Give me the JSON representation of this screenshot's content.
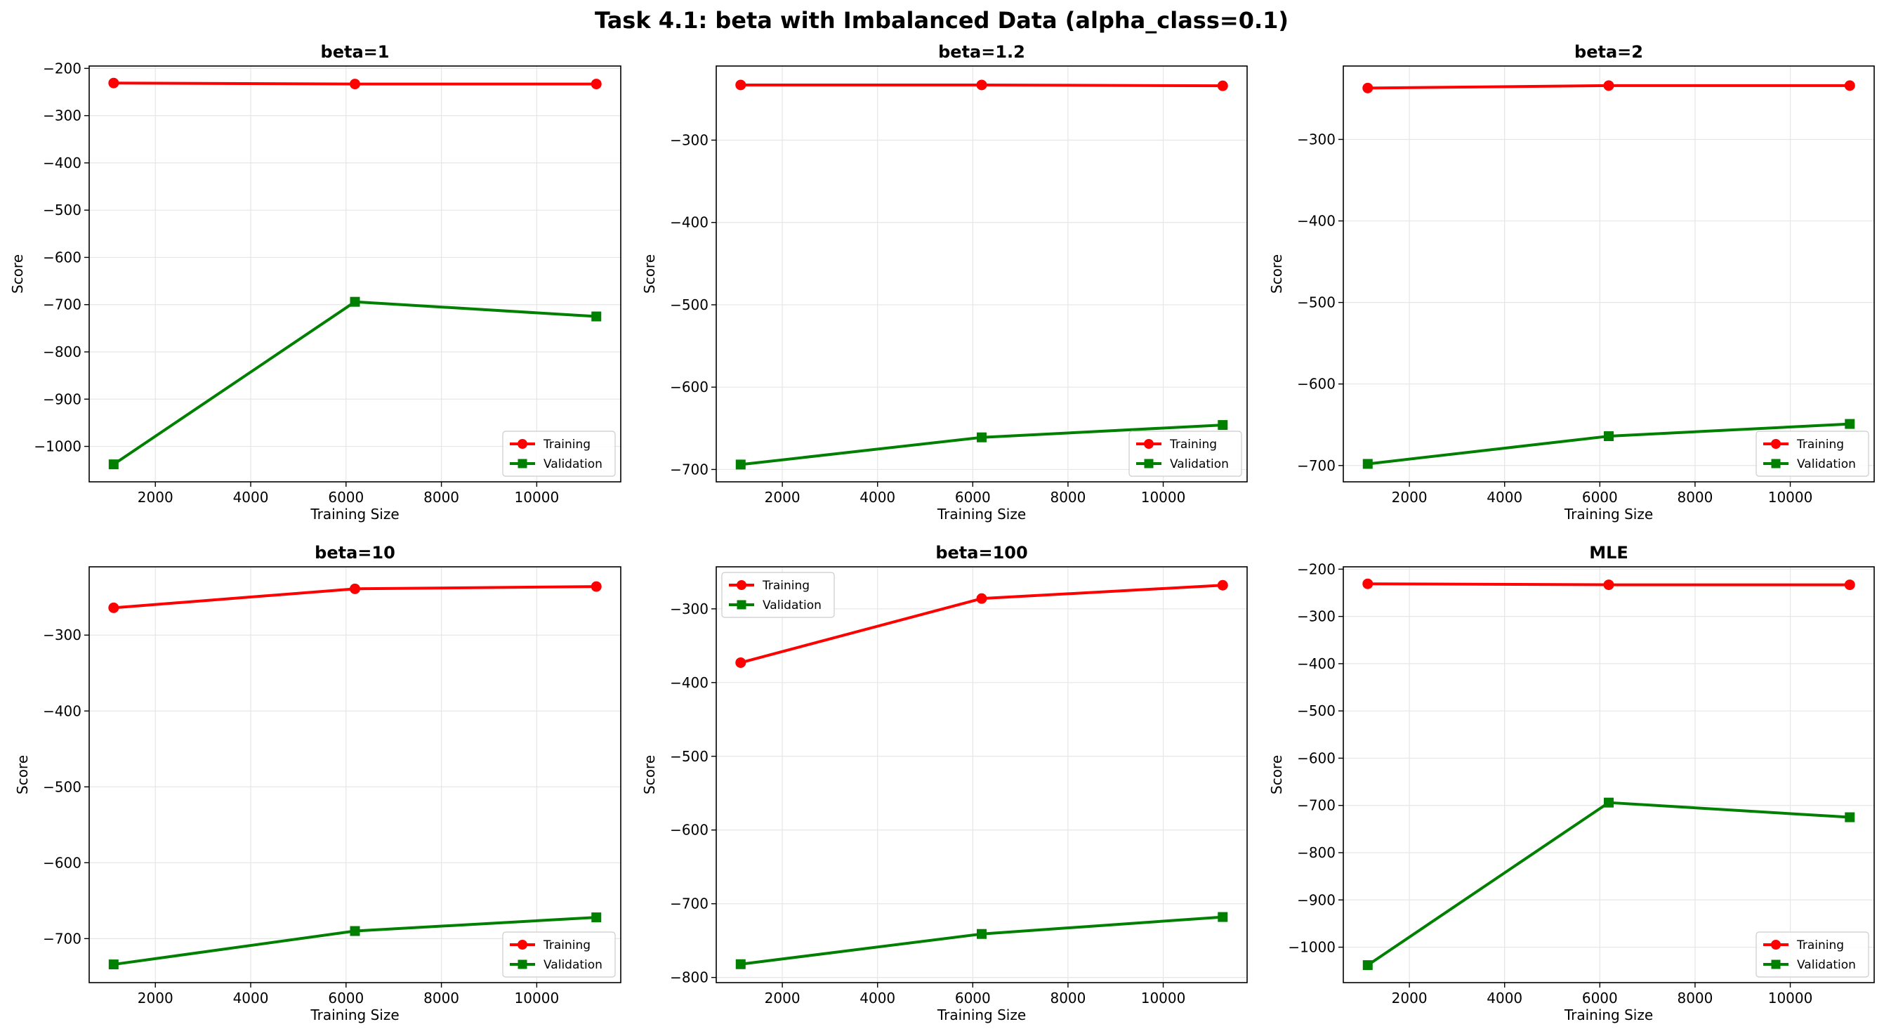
{
  "figure": {
    "suptitle": "Task 4.1: beta with Imbalanced Data (alpha_class=0.1)"
  },
  "chart_data": [
    {
      "type": "line",
      "title": "beta=1",
      "xlabel": "Training Size",
      "ylabel": "Score",
      "x": [
        1125,
        6187,
        11250
      ],
      "xlim": [
        612,
        11762
      ],
      "ylim": [
        -1075,
        -195
      ],
      "xticks": [
        2000,
        4000,
        6000,
        8000,
        10000
      ],
      "yticks": [
        -200,
        -300,
        -400,
        -500,
        -600,
        -700,
        -800,
        -900,
        -1000
      ],
      "grid": true,
      "legend": "lower right",
      "series": [
        {
          "name": "Training",
          "color": "#ff0000",
          "marker": "circle",
          "values": [
            -231,
            -233,
            -233
          ]
        },
        {
          "name": "Validation",
          "color": "#008000",
          "marker": "square",
          "values": [
            -1038,
            -694,
            -725
          ]
        }
      ]
    },
    {
      "type": "line",
      "title": "beta=1.2",
      "xlabel": "Training Size",
      "ylabel": "Score",
      "x": [
        1125,
        6187,
        11250
      ],
      "xlim": [
        612,
        11762
      ],
      "ylim": [
        -715,
        -210
      ],
      "xticks": [
        2000,
        4000,
        6000,
        8000,
        10000
      ],
      "yticks": [
        -300,
        -400,
        -500,
        -600,
        -700
      ],
      "grid": true,
      "legend": "lower right",
      "series": [
        {
          "name": "Training",
          "color": "#ff0000",
          "marker": "circle",
          "values": [
            -233,
            -233,
            -234
          ]
        },
        {
          "name": "Validation",
          "color": "#008000",
          "marker": "square",
          "values": [
            -694,
            -661,
            -646
          ]
        }
      ]
    },
    {
      "type": "line",
      "title": "beta=2",
      "xlabel": "Training Size",
      "ylabel": "Score",
      "x": [
        1125,
        6187,
        11250
      ],
      "xlim": [
        612,
        11762
      ],
      "ylim": [
        -720,
        -210
      ],
      "xticks": [
        2000,
        4000,
        6000,
        8000,
        10000
      ],
      "yticks": [
        -300,
        -400,
        -500,
        -600,
        -700
      ],
      "grid": true,
      "legend": "lower right",
      "series": [
        {
          "name": "Training",
          "color": "#ff0000",
          "marker": "circle",
          "values": [
            -237,
            -234,
            -234
          ]
        },
        {
          "name": "Validation",
          "color": "#008000",
          "marker": "square",
          "values": [
            -698,
            -664,
            -649
          ]
        }
      ]
    },
    {
      "type": "line",
      "title": "beta=10",
      "xlabel": "Training Size",
      "ylabel": "Score",
      "x": [
        1125,
        6187,
        11250
      ],
      "xlim": [
        612,
        11762
      ],
      "ylim": [
        -758,
        -210
      ],
      "xticks": [
        2000,
        4000,
        6000,
        8000,
        10000
      ],
      "yticks": [
        -300,
        -400,
        -500,
        -600,
        -700
      ],
      "grid": true,
      "legend": "lower right",
      "series": [
        {
          "name": "Training",
          "color": "#ff0000",
          "marker": "circle",
          "values": [
            -264,
            -239,
            -236
          ]
        },
        {
          "name": "Validation",
          "color": "#008000",
          "marker": "square",
          "values": [
            -734,
            -690,
            -672
          ]
        }
      ]
    },
    {
      "type": "line",
      "title": "beta=100",
      "xlabel": "Training Size",
      "ylabel": "Score",
      "x": [
        1125,
        6187,
        11250
      ],
      "xlim": [
        612,
        11762
      ],
      "ylim": [
        -807,
        -243
      ],
      "xticks": [
        2000,
        4000,
        6000,
        8000,
        10000
      ],
      "yticks": [
        -300,
        -400,
        -500,
        -600,
        -700,
        -800
      ],
      "grid": true,
      "legend": "upper left",
      "series": [
        {
          "name": "Training",
          "color": "#ff0000",
          "marker": "circle",
          "values": [
            -373,
            -286,
            -268
          ]
        },
        {
          "name": "Validation",
          "color": "#008000",
          "marker": "square",
          "values": [
            -782,
            -741,
            -718
          ]
        }
      ]
    },
    {
      "type": "line",
      "title": "MLE",
      "xlabel": "Training Size",
      "ylabel": "Score",
      "x": [
        1125,
        6187,
        11250
      ],
      "xlim": [
        612,
        11762
      ],
      "ylim": [
        -1075,
        -195
      ],
      "xticks": [
        2000,
        4000,
        6000,
        8000,
        10000
      ],
      "yticks": [
        -200,
        -300,
        -400,
        -500,
        -600,
        -700,
        -800,
        -900,
        -1000
      ],
      "grid": true,
      "legend": "lower right",
      "series": [
        {
          "name": "Training",
          "color": "#ff0000",
          "marker": "circle",
          "values": [
            -231,
            -233,
            -233
          ]
        },
        {
          "name": "Validation",
          "color": "#008000",
          "marker": "square",
          "values": [
            -1038,
            -694,
            -725
          ]
        }
      ]
    }
  ]
}
